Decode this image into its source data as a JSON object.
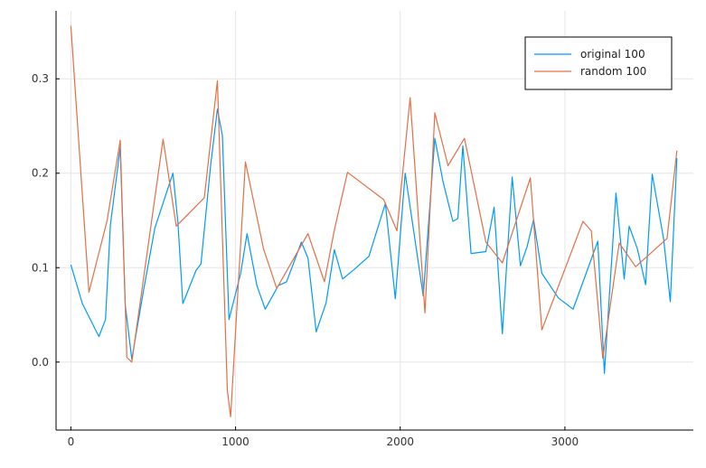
{
  "chart_data": {
    "type": "line",
    "title": "",
    "xlabel": "",
    "ylabel": "",
    "xlim": [
      -90,
      3780
    ],
    "ylim": [
      -0.072,
      0.372
    ],
    "xticks": [
      0,
      1000,
      2000,
      3000
    ],
    "yticks": [
      0.0,
      0.1,
      0.2,
      0.3
    ],
    "xtick_labels": [
      "0",
      "1000",
      "2000",
      "3000"
    ],
    "ytick_labels": [
      "0.0",
      "0.1",
      "0.2",
      "0.3"
    ],
    "grid": true,
    "legend_position": "top-right",
    "series": [
      {
        "name": "original 100",
        "color": "#009af9",
        "x": [
          0,
          70,
          170,
          210,
          240,
          300,
          330,
          370,
          440,
          510,
          620,
          650,
          680,
          760,
          790,
          850,
          890,
          920,
          960,
          1030,
          1070,
          1130,
          1180,
          1260,
          1310,
          1400,
          1440,
          1490,
          1550,
          1600,
          1650,
          1720,
          1810,
          1910,
          1970,
          2030,
          2140,
          2210,
          2260,
          2320,
          2350,
          2380,
          2430,
          2520,
          2570,
          2620,
          2680,
          2730,
          2770,
          2810,
          2860,
          2960,
          3050,
          3200,
          3240,
          3310,
          3360,
          3390,
          3440,
          3490,
          3530,
          3600,
          3640,
          3680
        ],
        "y": [
          0.103,
          0.062,
          0.027,
          0.045,
          0.145,
          0.227,
          0.061,
          0.003,
          0.075,
          0.142,
          0.2,
          0.148,
          0.062,
          0.097,
          0.104,
          0.21,
          0.268,
          0.24,
          0.045,
          0.093,
          0.136,
          0.081,
          0.056,
          0.081,
          0.085,
          0.127,
          0.11,
          0.032,
          0.063,
          0.119,
          0.088,
          0.098,
          0.112,
          0.168,
          0.067,
          0.2,
          0.07,
          0.237,
          0.191,
          0.149,
          0.152,
          0.229,
          0.115,
          0.117,
          0.164,
          0.03,
          0.196,
          0.102,
          0.122,
          0.151,
          0.094,
          0.068,
          0.056,
          0.128,
          -0.012,
          0.179,
          0.088,
          0.144,
          0.12,
          0.082,
          0.199,
          0.13,
          0.064,
          0.216
        ]
      },
      {
        "name": "random 100",
        "color": "#e26f46",
        "x": [
          0,
          110,
          220,
          300,
          340,
          370,
          560,
          640,
          810,
          890,
          950,
          970,
          1060,
          1170,
          1250,
          1440,
          1540,
          1600,
          1680,
          1900,
          1980,
          2060,
          2150,
          2210,
          2290,
          2390,
          2520,
          2620,
          2790,
          2860,
          3110,
          3160,
          3230,
          3330,
          3430,
          3620,
          3680
        ],
        "y": [
          0.356,
          0.074,
          0.15,
          0.235,
          0.005,
          0.0,
          0.236,
          0.144,
          0.174,
          0.298,
          -0.03,
          -0.058,
          0.212,
          0.12,
          0.078,
          0.136,
          0.085,
          0.14,
          0.201,
          0.172,
          0.139,
          0.28,
          0.052,
          0.264,
          0.208,
          0.237,
          0.127,
          0.105,
          0.195,
          0.034,
          0.149,
          0.139,
          0.004,
          0.126,
          0.101,
          0.131,
          0.224
        ]
      }
    ]
  }
}
